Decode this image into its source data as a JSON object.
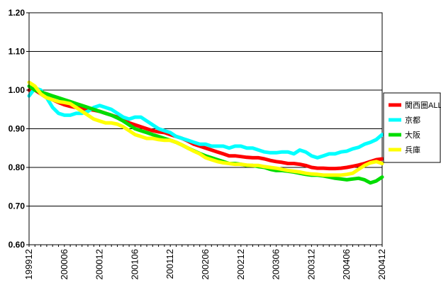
{
  "chart_data": {
    "type": "line",
    "title": "",
    "xlabel": "",
    "ylabel": "",
    "ylim": [
      0.6,
      1.2
    ],
    "y_ticks": [
      "0.60",
      "0.70",
      "0.80",
      "0.90",
      "1.00",
      "1.10",
      "1.20"
    ],
    "x_tick_labels": [
      "199912",
      "200006",
      "200012",
      "200106",
      "200112",
      "200206",
      "200212",
      "200306",
      "200312",
      "200406",
      "200412"
    ],
    "grid": "horizontal major gridlines",
    "legend_position": "right",
    "categories": [
      "199912",
      "200001",
      "200002",
      "200003",
      "200004",
      "200005",
      "200006",
      "200007",
      "200008",
      "200009",
      "200010",
      "200011",
      "200012",
      "200101",
      "200102",
      "200103",
      "200104",
      "200105",
      "200106",
      "200107",
      "200108",
      "200109",
      "200110",
      "200111",
      "200112",
      "200201",
      "200202",
      "200203",
      "200204",
      "200205",
      "200206",
      "200207",
      "200208",
      "200209",
      "200210",
      "200211",
      "200212",
      "200301",
      "200302",
      "200303",
      "200304",
      "200305",
      "200306",
      "200307",
      "200308",
      "200309",
      "200310",
      "200311",
      "200312",
      "200401",
      "200402",
      "200403",
      "200404",
      "200405",
      "200406",
      "200407",
      "200408",
      "200409",
      "200410",
      "200411",
      "200412"
    ],
    "series": [
      {
        "name": "関西圏ALL",
        "color": "#ff0000",
        "values": [
          1.0,
          1.0,
          0.99,
          0.98,
          0.975,
          0.968,
          0.962,
          0.958,
          0.955,
          0.952,
          0.95,
          0.948,
          0.945,
          0.94,
          0.935,
          0.93,
          0.925,
          0.915,
          0.91,
          0.905,
          0.9,
          0.895,
          0.892,
          0.89,
          0.885,
          0.88,
          0.875,
          0.868,
          0.86,
          0.855,
          0.85,
          0.845,
          0.84,
          0.835,
          0.83,
          0.83,
          0.828,
          0.826,
          0.825,
          0.825,
          0.822,
          0.818,
          0.815,
          0.813,
          0.81,
          0.81,
          0.808,
          0.805,
          0.8,
          0.798,
          0.798,
          0.797,
          0.797,
          0.798,
          0.8,
          0.803,
          0.806,
          0.81,
          0.815,
          0.82,
          0.822
        ]
      },
      {
        "name": "京都",
        "color": "#00ffff",
        "values": [
          0.985,
          1.005,
          1.0,
          0.98,
          0.955,
          0.94,
          0.935,
          0.935,
          0.94,
          0.94,
          0.945,
          0.955,
          0.96,
          0.955,
          0.95,
          0.94,
          0.93,
          0.925,
          0.93,
          0.93,
          0.92,
          0.91,
          0.9,
          0.895,
          0.89,
          0.88,
          0.875,
          0.87,
          0.865,
          0.86,
          0.86,
          0.855,
          0.855,
          0.855,
          0.85,
          0.855,
          0.855,
          0.85,
          0.85,
          0.845,
          0.84,
          0.838,
          0.838,
          0.84,
          0.84,
          0.835,
          0.845,
          0.84,
          0.83,
          0.825,
          0.83,
          0.835,
          0.835,
          0.84,
          0.842,
          0.848,
          0.852,
          0.86,
          0.865,
          0.872,
          0.885
        ]
      },
      {
        "name": "大阪",
        "color": "#00dd00",
        "values": [
          1.01,
          1.0,
          0.995,
          0.99,
          0.985,
          0.98,
          0.975,
          0.97,
          0.965,
          0.96,
          0.955,
          0.95,
          0.945,
          0.94,
          0.935,
          0.928,
          0.92,
          0.91,
          0.9,
          0.895,
          0.89,
          0.885,
          0.88,
          0.875,
          0.87,
          0.865,
          0.858,
          0.85,
          0.843,
          0.836,
          0.83,
          0.825,
          0.82,
          0.815,
          0.81,
          0.81,
          0.808,
          0.805,
          0.805,
          0.802,
          0.8,
          0.795,
          0.792,
          0.792,
          0.79,
          0.788,
          0.785,
          0.782,
          0.78,
          0.78,
          0.778,
          0.775,
          0.772,
          0.77,
          0.768,
          0.77,
          0.772,
          0.768,
          0.76,
          0.765,
          0.775
        ]
      },
      {
        "name": "兵庫",
        "color": "#ffff00",
        "values": [
          1.02,
          1.01,
          0.99,
          0.98,
          0.975,
          0.97,
          0.968,
          0.965,
          0.955,
          0.945,
          0.935,
          0.925,
          0.92,
          0.915,
          0.915,
          0.912,
          0.905,
          0.895,
          0.885,
          0.88,
          0.875,
          0.875,
          0.872,
          0.87,
          0.87,
          0.865,
          0.858,
          0.85,
          0.842,
          0.835,
          0.825,
          0.82,
          0.815,
          0.812,
          0.81,
          0.808,
          0.808,
          0.806,
          0.805,
          0.805,
          0.802,
          0.8,
          0.798,
          0.795,
          0.792,
          0.79,
          0.788,
          0.785,
          0.783,
          0.782,
          0.78,
          0.78,
          0.78,
          0.78,
          0.782,
          0.785,
          0.795,
          0.805,
          0.812,
          0.815,
          0.81
        ]
      }
    ]
  }
}
